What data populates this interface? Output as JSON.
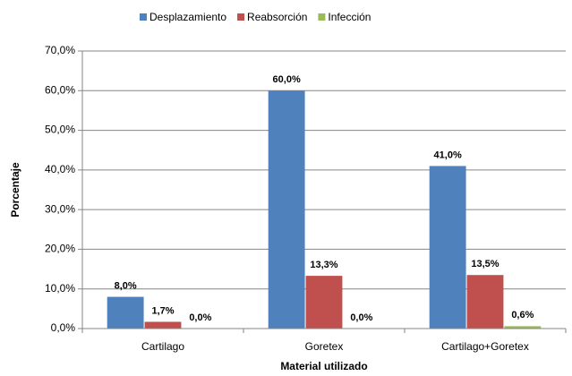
{
  "chart_data": {
    "type": "bar",
    "x_label": "Material utilizado",
    "y_label": "Porcentaje",
    "categories": [
      "Cartilago",
      "Goretex",
      "Cartilago+Goretex"
    ],
    "series": [
      {
        "name": "Desplazamiento",
        "color": "#4f81bd",
        "values": [
          8.0,
          60.0,
          41.0
        ],
        "value_labels": [
          "8,0%",
          "60,0%",
          "41,0%"
        ]
      },
      {
        "name": "Reabsorción",
        "color": "#c0504d",
        "values": [
          1.7,
          13.3,
          13.5
        ],
        "value_labels": [
          "1,7%",
          "13,3%",
          "13,5%"
        ]
      },
      {
        "name": "Infección",
        "color": "#9bbb59",
        "values": [
          0.0,
          0.0,
          0.6
        ],
        "value_labels": [
          "0,0%",
          "0,0%",
          "0,6%"
        ]
      }
    ],
    "ylim": [
      0,
      70
    ],
    "yticks": [
      {
        "value": 0,
        "label": "0,0%"
      },
      {
        "value": 10,
        "label": "10,0%"
      },
      {
        "value": 20,
        "label": "20,0%"
      },
      {
        "value": 30,
        "label": "30,0%"
      },
      {
        "value": 40,
        "label": "40,0%"
      },
      {
        "value": 50,
        "label": "50,0%"
      },
      {
        "value": 60,
        "label": "60,0%"
      },
      {
        "value": 70,
        "label": "70,0%"
      }
    ],
    "grid": true,
    "legend": "top"
  }
}
